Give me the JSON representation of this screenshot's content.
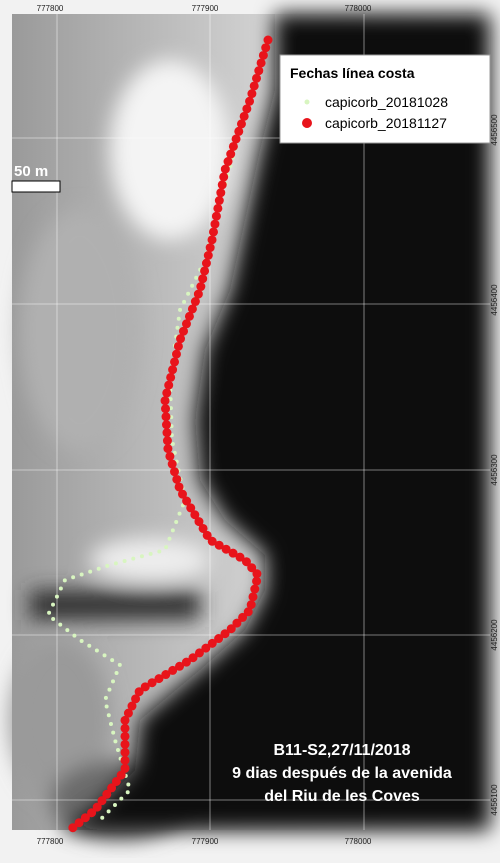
{
  "axes": {
    "top": [
      "777800",
      "777900",
      "778000"
    ],
    "bottom": [
      "777800",
      "777900",
      "778000"
    ],
    "right": [
      "4456500",
      "4456400",
      "4456300",
      "4456200",
      "4456100"
    ]
  },
  "legend": {
    "title": "Fechas línea costa",
    "items": [
      "capicorb_20181028",
      "capicorb_20181127"
    ]
  },
  "scale_bar": "50 m",
  "caption": [
    "B11-S2,27/11/2018",
    "9 dias después de la avenida",
    "del Riu de les Coves"
  ]
}
